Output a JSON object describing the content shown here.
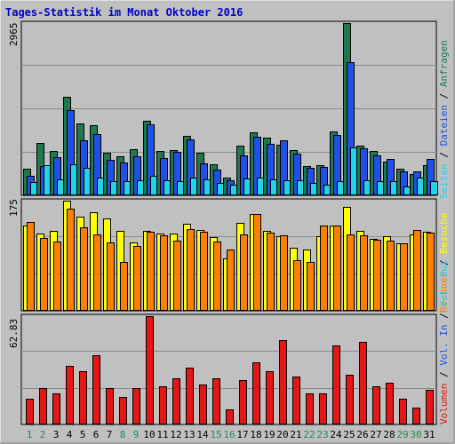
{
  "title": "Tages-Statistik im Monat Oktober 2016",
  "colors": {
    "background": "#c0c0c0",
    "title": "#0000cc",
    "hits": "#1e7850",
    "files": "#1f52e4",
    "pages": "#22d3ee",
    "visits": "#ffff00",
    "hosts": "#ff8000",
    "kbytes": "#e51616",
    "weekday_label": "#000000",
    "weekend_label": "#1e8c50"
  },
  "chart_data": [
    {
      "type": "bar",
      "name": "hits-files-pages",
      "ymax_label": "2965",
      "ylim": [
        0,
        2965
      ],
      "x": [
        "1",
        "2",
        "3",
        "4",
        "5",
        "6",
        "7",
        "8",
        "9",
        "10",
        "11",
        "12",
        "13",
        "14",
        "15",
        "16",
        "17",
        "18",
        "19",
        "20",
        "21",
        "22",
        "23",
        "24",
        "25",
        "26",
        "27",
        "28",
        "29",
        "30",
        "31"
      ],
      "weekend_days": [
        "1",
        "2",
        "8",
        "9",
        "15",
        "16",
        "22",
        "23",
        "29",
        "30"
      ],
      "series": [
        {
          "name": "Anfragen",
          "values": [
            460,
            900,
            760,
            1700,
            1240,
            1200,
            740,
            680,
            790,
            1280,
            760,
            780,
            1030,
            740,
            540,
            300,
            860,
            1080,
            1000,
            870,
            780,
            500,
            520,
            1100,
            2965,
            850,
            760,
            580,
            460,
            360,
            520
          ]
        },
        {
          "name": "Dateien",
          "values": [
            340,
            500,
            660,
            1470,
            940,
            1050,
            610,
            560,
            680,
            1230,
            640,
            750,
            960,
            550,
            440,
            260,
            690,
            1010,
            890,
            940,
            720,
            480,
            490,
            1040,
            2300,
            810,
            690,
            630,
            420,
            420,
            620
          ]
        },
        {
          "name": "Seiten",
          "values": [
            230,
            520,
            280,
            540,
            480,
            300,
            250,
            240,
            260,
            340,
            260,
            240,
            300,
            280,
            210,
            180,
            290,
            300,
            270,
            260,
            260,
            210,
            180,
            240,
            820,
            260,
            250,
            240,
            160,
            300,
            240
          ]
        }
      ]
    },
    {
      "type": "bar",
      "name": "visits-hosts",
      "ymax_label": "175",
      "ylim": [
        0,
        175
      ],
      "x": [
        "1",
        "2",
        "3",
        "4",
        "5",
        "6",
        "7",
        "8",
        "9",
        "10",
        "11",
        "12",
        "13",
        "14",
        "15",
        "16",
        "17",
        "18",
        "19",
        "20",
        "21",
        "22",
        "23",
        "24",
        "25",
        "26",
        "27",
        "28",
        "29",
        "30",
        "31"
      ],
      "series": [
        {
          "name": "Besuche",
          "values": [
            136,
            123,
            127,
            175,
            149,
            156,
            147,
            127,
            108,
            127,
            123,
            123,
            138,
            128,
            117,
            83,
            140,
            154,
            127,
            119,
            100,
            98,
            118,
            136,
            165,
            127,
            114,
            119,
            107,
            122,
            126
          ]
        },
        {
          "name": "Rechner",
          "values": [
            141,
            116,
            110,
            162,
            133,
            121,
            108,
            77,
            103,
            125,
            120,
            112,
            130,
            125,
            110,
            97,
            121,
            154,
            124,
            120,
            80,
            78,
            136,
            135,
            122,
            120,
            113,
            111,
            107,
            129,
            124
          ]
        }
      ]
    },
    {
      "type": "bar",
      "name": "volume",
      "ymax_label": "62.83",
      "ylim": [
        0,
        62.83
      ],
      "x": [
        "1",
        "2",
        "3",
        "4",
        "5",
        "6",
        "7",
        "8",
        "9",
        "10",
        "11",
        "12",
        "13",
        "14",
        "15",
        "16",
        "17",
        "18",
        "19",
        "20",
        "21",
        "22",
        "23",
        "24",
        "25",
        "26",
        "27",
        "28",
        "29",
        "30",
        "31"
      ],
      "series": [
        {
          "name": "Volumen",
          "values": [
            15,
            21,
            18,
            34,
            31,
            40,
            21,
            16,
            21,
            62.83,
            22,
            27,
            33,
            23,
            27,
            9,
            26,
            36,
            31,
            49,
            28,
            18,
            18,
            46,
            29,
            48,
            22,
            24,
            15,
            10,
            20
          ]
        }
      ]
    }
  ],
  "legend": {
    "top": [
      {
        "text": "Anfragen",
        "color": "#1e7850"
      },
      {
        "text": "Dateien",
        "color": "#1f52e4"
      },
      {
        "text": "Seiten",
        "color": "#22d3ee"
      }
    ],
    "middle": [
      {
        "text": "Besuche",
        "color": "#ffff00"
      },
      {
        "text": "Rechner",
        "color": "#ff8000"
      }
    ],
    "bottom": [
      {
        "text": "Volumen",
        "color": "#e51616"
      },
      {
        "text": "Vol. In",
        "color": "#1f52e4"
      },
      {
        "text": "Vol. Out",
        "color": "#22d3ee"
      }
    ],
    "separator": "/",
    "separator_color": "#000000"
  }
}
